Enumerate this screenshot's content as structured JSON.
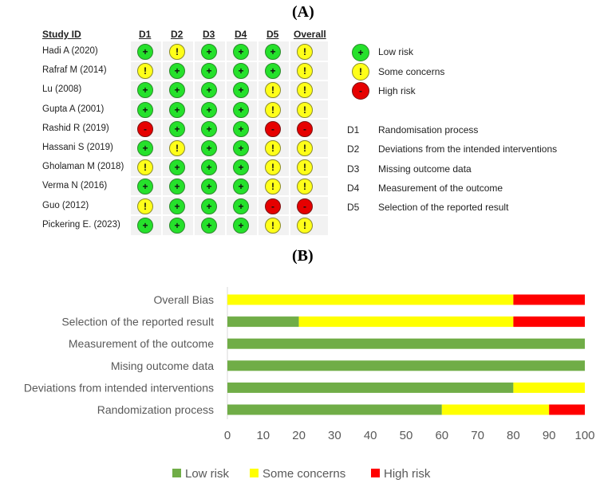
{
  "panel_a": {
    "label": "(A)",
    "headers": {
      "study": "Study ID",
      "d1": "D1",
      "d2": "D2",
      "d3": "D3",
      "d4": "D4",
      "d5": "D5",
      "overall": "Overall"
    },
    "studies": [
      {
        "name": "Hadi A (2020)",
        "judgments": [
          "low",
          "some",
          "low",
          "low",
          "low",
          "some"
        ]
      },
      {
        "name": "Rafraf M (2014)",
        "judgments": [
          "some",
          "low",
          "low",
          "low",
          "low",
          "some"
        ]
      },
      {
        "name": "Lu (2008)",
        "judgments": [
          "low",
          "low",
          "low",
          "low",
          "some",
          "some"
        ]
      },
      {
        "name": "Gupta A (2001)",
        "judgments": [
          "low",
          "low",
          "low",
          "low",
          "some",
          "some"
        ]
      },
      {
        "name": "Rashid R (2019)",
        "judgments": [
          "high",
          "low",
          "low",
          "low",
          "high",
          "high"
        ]
      },
      {
        "name": "Hassani S (2019)",
        "judgments": [
          "low",
          "some",
          "low",
          "low",
          "some",
          "some"
        ]
      },
      {
        "name": "Gholaman M (2018)",
        "judgments": [
          "some",
          "low",
          "low",
          "low",
          "some",
          "some"
        ]
      },
      {
        "name": "Verma N (2016)",
        "judgments": [
          "low",
          "low",
          "low",
          "low",
          "some",
          "some"
        ]
      },
      {
        "name": "Guo (2012)",
        "judgments": [
          "some",
          "low",
          "low",
          "low",
          "high",
          "high"
        ]
      },
      {
        "name": "Pickering E. (2023)",
        "judgments": [
          "low",
          "low",
          "low",
          "low",
          "some",
          "some"
        ]
      }
    ],
    "symbols": {
      "low": "+",
      "some": "!",
      "high": "-"
    },
    "legend": [
      {
        "key": "low",
        "label": "Low risk"
      },
      {
        "key": "some",
        "label": "Some concerns"
      },
      {
        "key": "high",
        "label": "High risk"
      }
    ],
    "domains": [
      {
        "code": "D1",
        "desc": "Randomisation process"
      },
      {
        "code": "D2",
        "desc": "Deviations from the intended interventions"
      },
      {
        "code": "D3",
        "desc": "Missing outcome data"
      },
      {
        "code": "D4",
        "desc": "Measurement of the outcome"
      },
      {
        "code": "D5",
        "desc": "Selection of the reported result"
      }
    ]
  },
  "panel_b": {
    "label": "(B)"
  },
  "colors": {
    "low": "#70ad47",
    "some": "#ffff00",
    "high": "#ff0000",
    "dot_low": "#25e12b",
    "dot_some": "#ffff19",
    "dot_high": "#e60000"
  },
  "chart_data": {
    "type": "bar",
    "orientation": "horizontal",
    "stacked": true,
    "categories": [
      "Overall Bias",
      "Selection of the reported result",
      "Measurement of the outcome",
      "Mising outcome data",
      "Deviations from intended interventions",
      "Randomization process"
    ],
    "series": [
      {
        "name": "Low risk",
        "color": "#70ad47",
        "values": [
          0,
          20,
          100,
          100,
          80,
          60
        ]
      },
      {
        "name": "Some concerns",
        "color": "#ffff00",
        "values": [
          80,
          60,
          0,
          0,
          20,
          30
        ]
      },
      {
        "name": "High risk",
        "color": "#ff0000",
        "values": [
          20,
          20,
          0,
          0,
          0,
          10
        ]
      }
    ],
    "xlim": [
      0,
      100
    ],
    "xticks": [
      "0",
      "10",
      "20",
      "30",
      "40",
      "50",
      "60",
      "70",
      "80",
      "90",
      "100"
    ],
    "title": "",
    "xlabel": "",
    "ylabel": "",
    "legend_position": "bottom"
  }
}
